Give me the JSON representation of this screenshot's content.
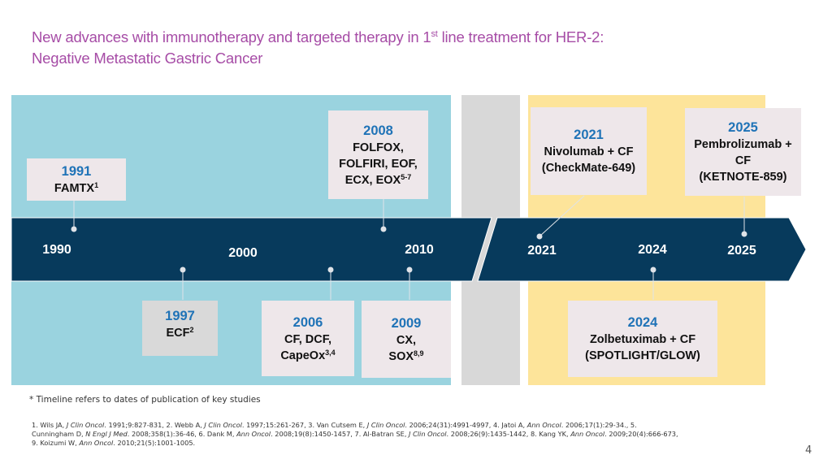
{
  "title": {
    "line1_pre": "New advances with immunotherapy and targeted therapy in 1",
    "line1_sup": "st",
    "line1_post": " line treatment for HER-2:",
    "line2": "Negative Metastatic Gastric Cancer"
  },
  "colors": {
    "title": "#a64ca6",
    "era_chemo": "#9ad3df",
    "era_gap": "#d8d8d8",
    "era_immuno": "#fde49a",
    "band": "#073a5c",
    "year_text": "#1f73b7",
    "box": "#eee7ea"
  },
  "axis_labels": [
    "1990",
    "2000",
    "2010",
    "2021",
    "2024",
    "2025"
  ],
  "events_above": [
    {
      "year": "1991",
      "lines": [
        "FAMTX"
      ],
      "sup": "1"
    },
    {
      "year": "2008",
      "lines": [
        "FOLFOX,",
        "FOLFIRI, EOF,",
        "ECX, EOX"
      ],
      "sup": "5-7"
    },
    {
      "year": "2021",
      "lines": [
        "Nivolumab + CF",
        "(CheckMate-649)"
      ],
      "sup": ""
    },
    {
      "year": "2025",
      "lines": [
        "Pembrolizumab +",
        "CF",
        "(KETNOTE-859)"
      ],
      "sup": ""
    }
  ],
  "events_below": [
    {
      "year": "1997",
      "lines": [
        "ECF"
      ],
      "sup": "2"
    },
    {
      "year": "2006",
      "lines": [
        "CF, DCF,",
        "CapeOx"
      ],
      "sup": "3,4"
    },
    {
      "year": "2009",
      "lines": [
        "CX,",
        "SOX"
      ],
      "sup": "8,9"
    },
    {
      "year": "2024",
      "lines": [
        "Zolbetuximab + CF",
        "(SPOTLIGHT/GLOW)"
      ],
      "sup": ""
    }
  ],
  "footnote": "* Timeline refers to dates of publication of key studies",
  "references": {
    "r1a": "1. Wils JA, ",
    "r1j": "J Clin Oncol",
    "r1b": ". 1991;9:827-831, 2. Webb A, ",
    "r2j": "J Clin Oncol",
    "r2b": ". 1997;15:261-267, 3. Van Cutsem E, ",
    "r3j": "J Clin Oncol",
    "r3b": ". 2006;24(31):4991-4997, 4. Jatoi A, ",
    "r4j": "Ann Oncol",
    "r4b": ". 2006;17(1):29-34., 5.",
    "r5a": "Cunningham D, ",
    "r5j": "N Engl J Med",
    "r5b": ". 2008;358(1):36-46, 6. Dank M, ",
    "r6j": "Ann Oncol",
    "r6b": ". 2008;19(8):1450-1457, 7. Al-Batran SE, ",
    "r7j": "J Clin Oncol",
    "r7b": ". 2008;26(9):1435-1442, 8. Kang YK, ",
    "r8j": "Ann Oncol",
    "r8b": ". 2009;20(4):666-673,",
    "r9a": "9. Koizumi W, ",
    "r9j": "Ann Oncol",
    "r9b": ". 2010;21(5):1001-1005."
  },
  "page_number": "4"
}
